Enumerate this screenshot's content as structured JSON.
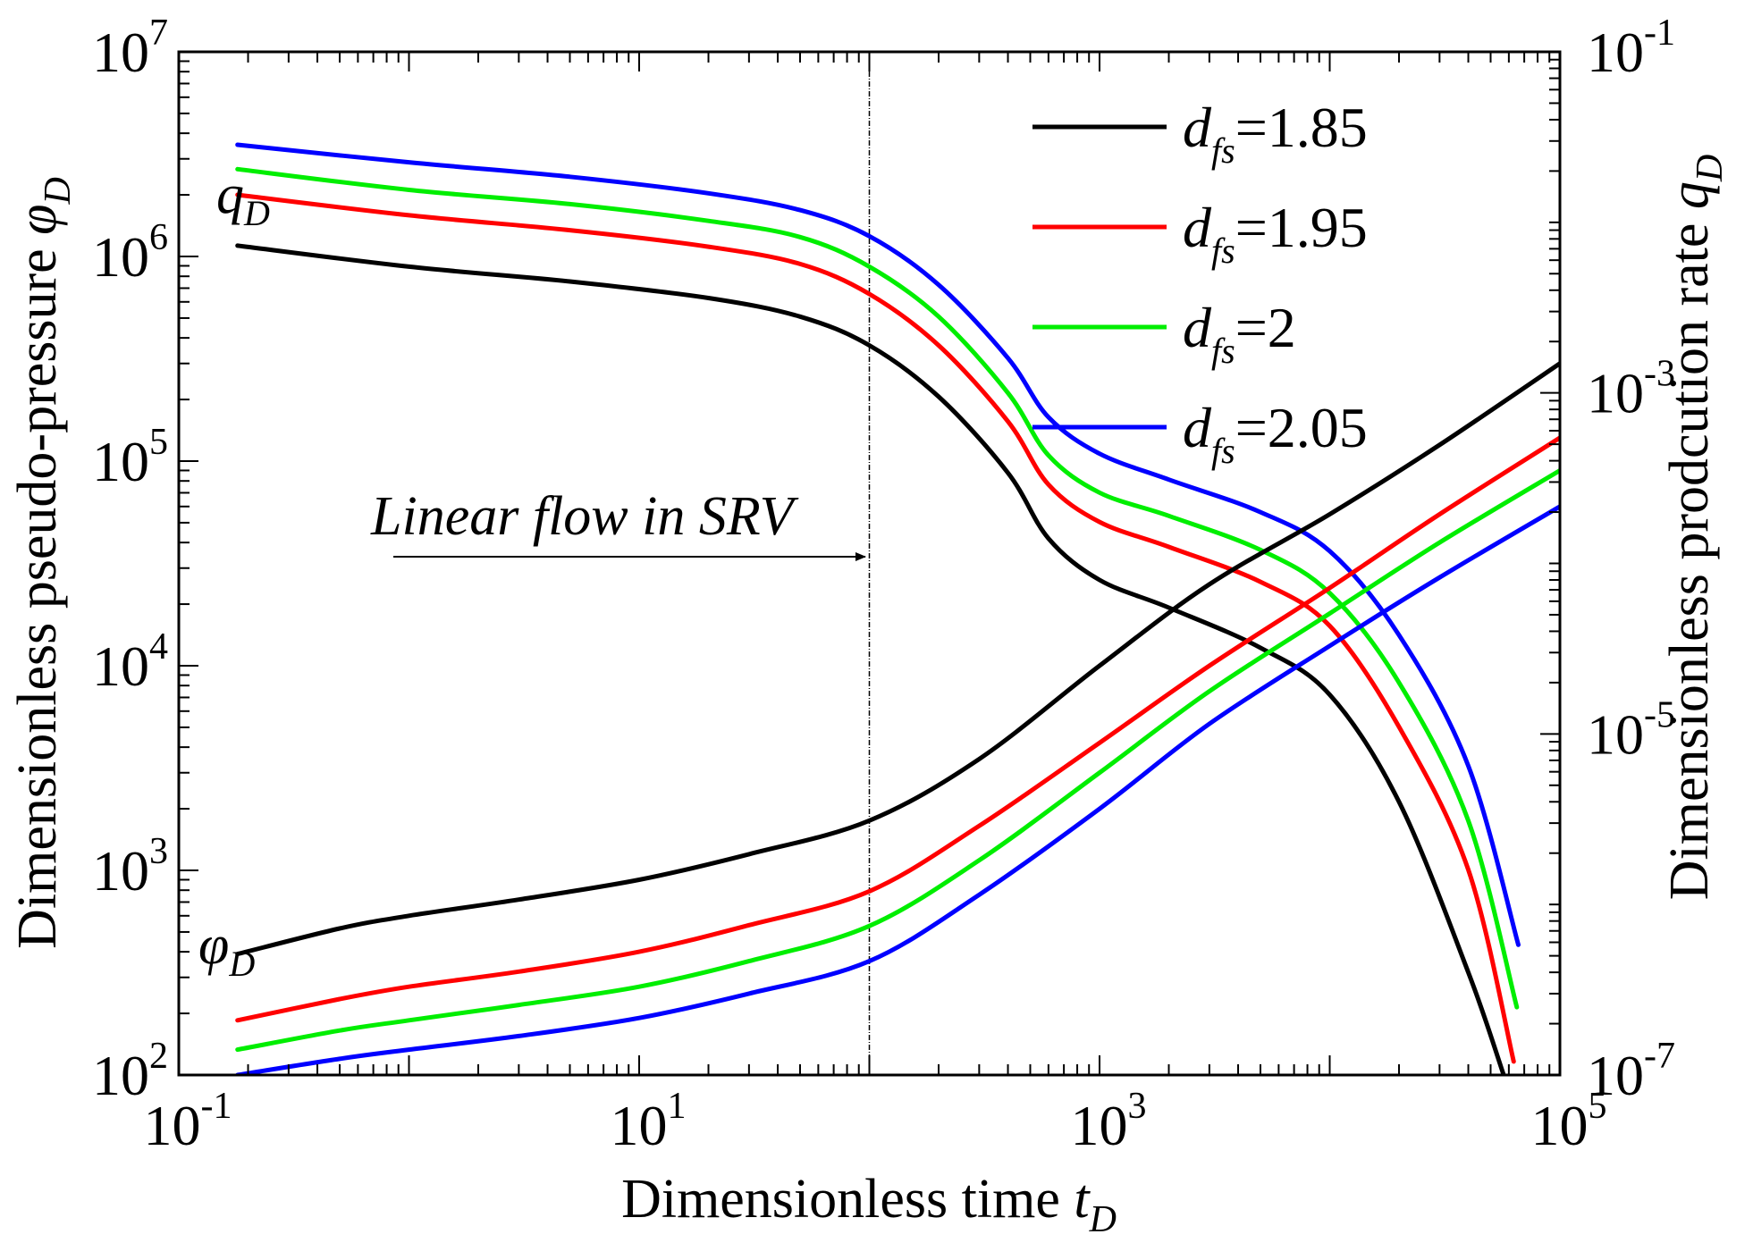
{
  "chart_data": {
    "type": "line",
    "x_axis": {
      "label": "Dimensionless time ",
      "label_var": "t",
      "label_sub": "D",
      "scale": "log",
      "range": [
        0.1,
        100000
      ],
      "major_ticks": [
        {
          "base": "10",
          "exp": "-1"
        },
        {
          "base": "10",
          "exp": "1"
        },
        {
          "base": "10",
          "exp": "3"
        },
        {
          "base": "10",
          "exp": "5"
        }
      ]
    },
    "y_left": {
      "label": "Dimensionless pseudo-pressure ",
      "label_var": "φ",
      "label_sub": "D",
      "scale": "log",
      "range": [
        100,
        10000000
      ],
      "major_ticks": [
        {
          "base": "10",
          "exp": "2"
        },
        {
          "base": "10",
          "exp": "3"
        },
        {
          "base": "10",
          "exp": "4"
        },
        {
          "base": "10",
          "exp": "5"
        },
        {
          "base": "10",
          "exp": "6"
        },
        {
          "base": "10",
          "exp": "7"
        }
      ]
    },
    "y_right": {
      "label": "Dimensionless prodcution rate ",
      "label_var": "q",
      "label_sub": "D",
      "scale": "log",
      "range": [
        1e-07,
        0.1
      ],
      "major_ticks": [
        {
          "base": "10",
          "exp": "-7"
        },
        {
          "base": "10",
          "exp": "-5"
        },
        {
          "base": "10",
          "exp": "-3"
        },
        {
          "base": "10",
          "exp": "-1"
        }
      ]
    },
    "legend": {
      "position": "top-right",
      "entries": [
        {
          "var": "d",
          "sub": "fs",
          "text": "=1.85",
          "color": "#000000"
        },
        {
          "var": "d",
          "sub": "fs",
          "text": "=1.95",
          "color": "#ff0000"
        },
        {
          "var": "d",
          "sub": "fs",
          "text": "=2",
          "color": "#00ee00"
        },
        {
          "var": "d",
          "sub": "fs",
          "text": "=2.05",
          "color": "#0000ff"
        }
      ]
    },
    "vertical_line_x": 100,
    "annotations": {
      "linear_flow": "Linear flow in SRV",
      "q_label": {
        "var": "q",
        "sub": "D"
      },
      "phi_label": {
        "var": "φ",
        "sub": "D"
      }
    },
    "series": [
      {
        "name": "qD d_fs=1.85",
        "axis": "right",
        "color": "#000000",
        "x": [
          0.18,
          1,
          5,
          20,
          50,
          100,
          200,
          400,
          600,
          1000,
          2000,
          5000,
          10000,
          20000,
          40000,
          57000
        ],
        "y": [
          0.0073,
          0.0055,
          0.0045,
          0.0036,
          0.0028,
          0.0019,
          0.00095,
          0.00034,
          0.00014,
          8e-05,
          5.5e-05,
          3.2e-05,
          1.7e-05,
          4e-06,
          4e-07,
          1e-07
        ]
      },
      {
        "name": "qD d_fs=1.95",
        "axis": "right",
        "color": "#ff0000",
        "x": [
          0.18,
          1,
          5,
          20,
          50,
          100,
          200,
          400,
          600,
          1000,
          2000,
          5000,
          10000,
          20000,
          40000,
          63000
        ],
        "y": [
          0.0145,
          0.011,
          0.009,
          0.0072,
          0.0057,
          0.0038,
          0.0019,
          0.00068,
          0.00029,
          0.000175,
          0.000125,
          7.8e-05,
          4.3e-05,
          1.1e-05,
          1.6e-06,
          1.2e-07
        ]
      },
      {
        "name": "qD d_fs=2",
        "axis": "right",
        "color": "#00ee00",
        "x": [
          0.18,
          1,
          5,
          20,
          50,
          100,
          200,
          400,
          600,
          1000,
          2000,
          5000,
          10000,
          20000,
          40000,
          65000
        ],
        "y": [
          0.0205,
          0.0155,
          0.0128,
          0.0102,
          0.0082,
          0.0055,
          0.0028,
          0.001,
          0.00043,
          0.00026,
          0.00019,
          0.00012,
          6.7e-05,
          2e-05,
          3.1e-06,
          2.5e-07
        ]
      },
      {
        "name": "qD d_fs=2.05",
        "axis": "right",
        "color": "#0000ff",
        "x": [
          0.18,
          1,
          5,
          20,
          50,
          100,
          200,
          400,
          600,
          1000,
          2000,
          5000,
          10000,
          20000,
          40000,
          66000
        ],
        "y": [
          0.0285,
          0.0225,
          0.0185,
          0.0148,
          0.0118,
          0.0083,
          0.0043,
          0.0016,
          0.00072,
          0.00044,
          0.00031,
          0.0002,
          0.000118,
          3.8e-05,
          6.5e-06,
          5.8e-07
        ]
      },
      {
        "name": "phiD d_fs=1.85",
        "axis": "left",
        "color": "#000000",
        "x": [
          0.18,
          0.5,
          1,
          3,
          10,
          30,
          100,
          300,
          1000,
          3000,
          10000,
          30000,
          100000
        ],
        "y": [
          390,
          520,
          600,
          720,
          900,
          1200,
          1750,
          3500,
          10000,
          25000,
          55000,
          120000,
          300000
        ]
      },
      {
        "name": "phiD d_fs=1.95",
        "axis": "left",
        "color": "#ff0000",
        "x": [
          0.18,
          0.5,
          1,
          3,
          10,
          30,
          100,
          300,
          1000,
          3000,
          10000,
          30000,
          100000
        ],
        "y": [
          185,
          235,
          270,
          320,
          400,
          540,
          790,
          1650,
          4200,
          10000,
          24000,
          55000,
          130000
        ]
      },
      {
        "name": "phiD d_fs=2",
        "axis": "left",
        "color": "#00ee00",
        "x": [
          0.18,
          0.5,
          1,
          3,
          10,
          30,
          100,
          300,
          1000,
          3000,
          10000,
          30000,
          100000
        ],
        "y": [
          133,
          165,
          185,
          220,
          270,
          360,
          535,
          1120,
          3000,
          7500,
          18000,
          40000,
          90000
        ]
      },
      {
        "name": "phiD d_fs=2.05",
        "axis": "left",
        "color": "#0000ff",
        "x": [
          0.18,
          0.5,
          1,
          3,
          10,
          30,
          100,
          300,
          1000,
          3000,
          10000,
          30000,
          100000
        ],
        "y": [
          100,
          120,
          133,
          155,
          190,
          250,
          360,
          760,
          2000,
          5200,
          12500,
          27000,
          60000
        ]
      }
    ]
  }
}
